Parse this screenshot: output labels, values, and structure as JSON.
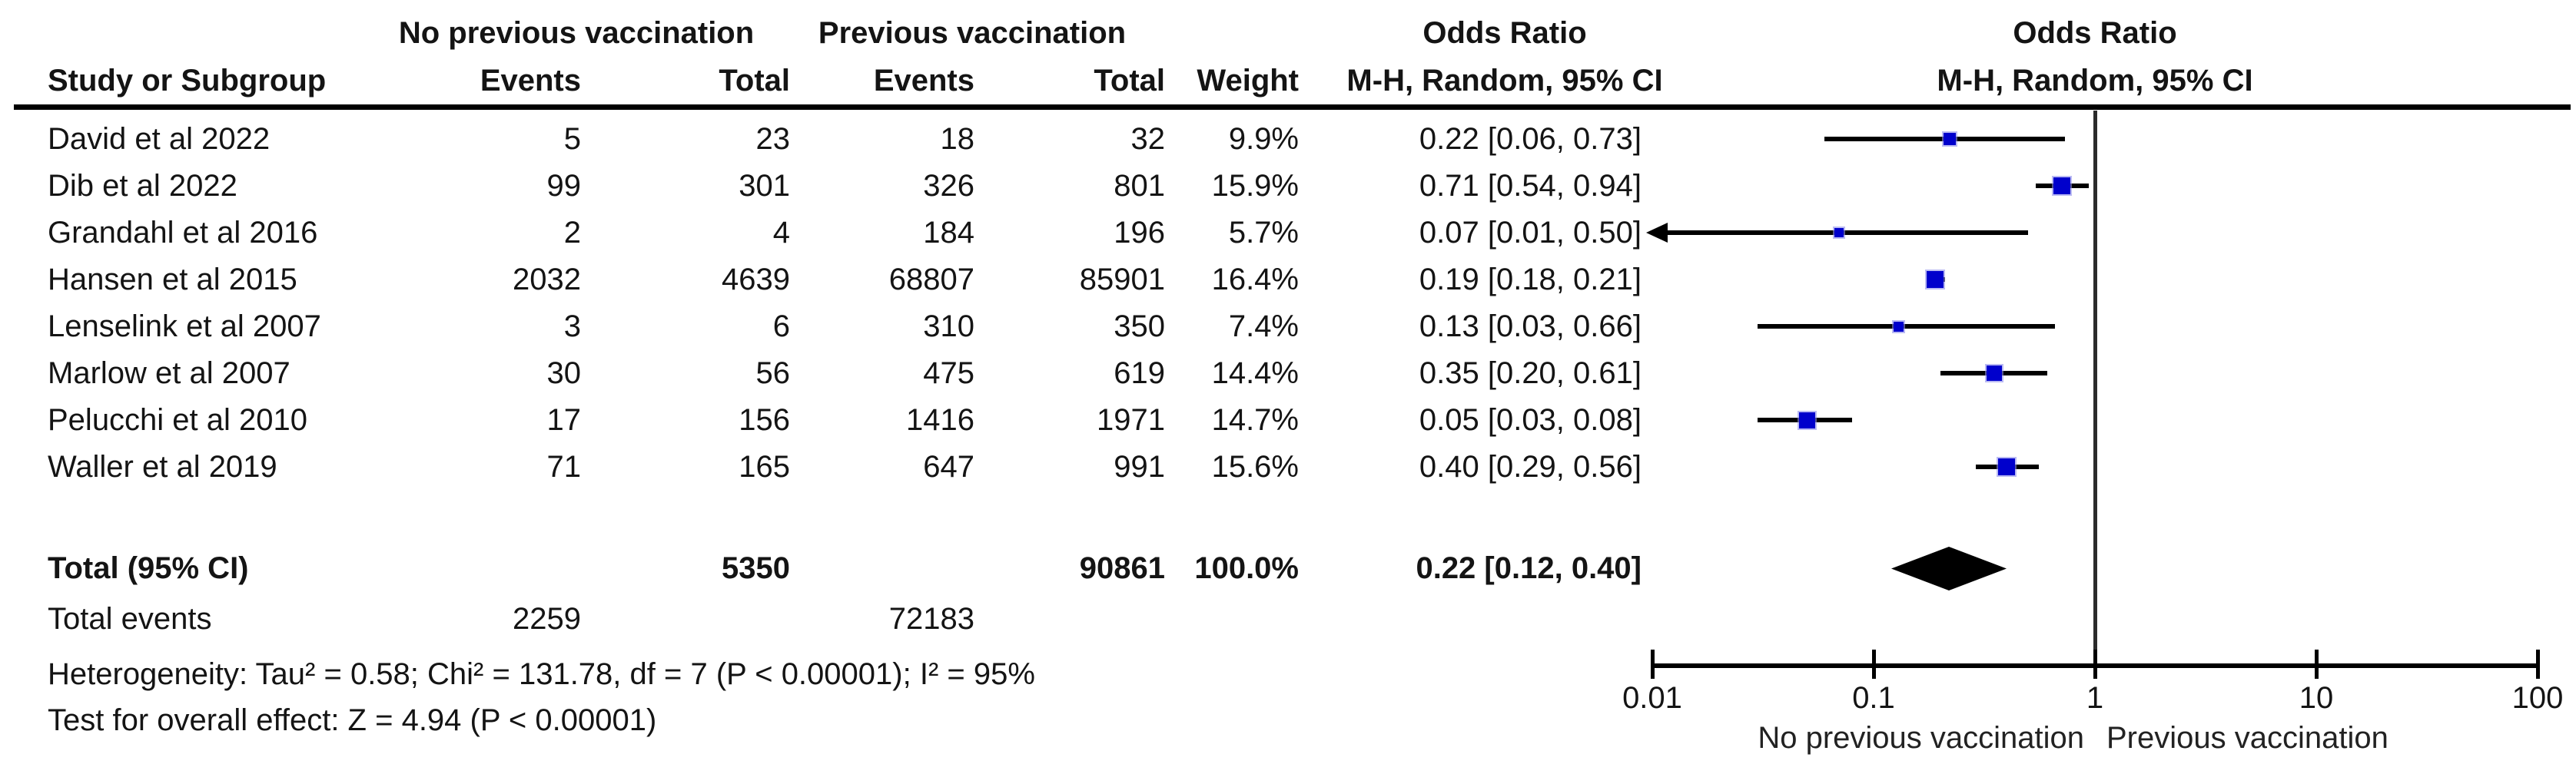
{
  "table": {
    "header_row1": {
      "group_no_prev": "No previous vaccination",
      "group_prev": "Previous vaccination",
      "or_col_title": "Odds Ratio"
    },
    "header_row2": {
      "study": "Study or Subgroup",
      "events1": "Events",
      "total1": "Total",
      "events2": "Events",
      "total2": "Total",
      "weight": "Weight",
      "or_ci": "M-H, Random, 95% CI"
    }
  },
  "plot_header": {
    "line1": "Odds Ratio",
    "line2": "M-H, Random, 95% CI"
  },
  "chart_data": {
    "type": "forest",
    "effect_measure": "Odds Ratio",
    "method": "M-H, Random, 95% CI",
    "x_scale": "log",
    "x_range": [
      0.01,
      100
    ],
    "x_ticks": [
      "0.01",
      "0.1",
      "1",
      "10",
      "100"
    ],
    "left_direction_label": "No previous vaccination",
    "right_direction_label": "Previous vaccination",
    "studies": [
      {
        "name": "David et al 2022",
        "events_no_prev": "5",
        "total_no_prev": "23",
        "events_prev": "18",
        "total_prev": "32",
        "weight": "9.9%",
        "weight_pct": 9.9,
        "or": 0.22,
        "ci_low": 0.06,
        "ci_high": 0.73,
        "or_label": "0.22 [0.06, 0.73]",
        "arrow_left": false
      },
      {
        "name": "Dib et al 2022",
        "events_no_prev": "99",
        "total_no_prev": "301",
        "events_prev": "326",
        "total_prev": "801",
        "weight": "15.9%",
        "weight_pct": 15.9,
        "or": 0.71,
        "ci_low": 0.54,
        "ci_high": 0.94,
        "or_label": "0.71 [0.54, 0.94]",
        "arrow_left": false
      },
      {
        "name": "Grandahl et al 2016",
        "events_no_prev": "2",
        "total_no_prev": "4",
        "events_prev": "184",
        "total_prev": "196",
        "weight": "5.7%",
        "weight_pct": 5.7,
        "or": 0.07,
        "ci_low": 0.01,
        "ci_high": 0.5,
        "or_label": "0.07 [0.01, 0.50]",
        "arrow_left": true
      },
      {
        "name": "Hansen et al 2015",
        "events_no_prev": "2032",
        "total_no_prev": "4639",
        "events_prev": "68807",
        "total_prev": "85901",
        "weight": "16.4%",
        "weight_pct": 16.4,
        "or": 0.19,
        "ci_low": 0.18,
        "ci_high": 0.21,
        "or_label": "0.19 [0.18, 0.21]",
        "arrow_left": false
      },
      {
        "name": "Lenselink et al 2007",
        "events_no_prev": "3",
        "total_no_prev": "6",
        "events_prev": "310",
        "total_prev": "350",
        "weight": "7.4%",
        "weight_pct": 7.4,
        "or": 0.13,
        "ci_low": 0.03,
        "ci_high": 0.66,
        "or_label": "0.13 [0.03, 0.66]",
        "arrow_left": false
      },
      {
        "name": "Marlow et al 2007",
        "events_no_prev": "30",
        "total_no_prev": "56",
        "events_prev": "475",
        "total_prev": "619",
        "weight": "14.4%",
        "weight_pct": 14.4,
        "or": 0.35,
        "ci_low": 0.2,
        "ci_high": 0.61,
        "or_label": "0.35 [0.20, 0.61]",
        "arrow_left": false
      },
      {
        "name": "Pelucchi et al 2010",
        "events_no_prev": "17",
        "total_no_prev": "156",
        "events_prev": "1416",
        "total_prev": "1971",
        "weight": "14.7%",
        "weight_pct": 14.7,
        "or": 0.05,
        "ci_low": 0.03,
        "ci_high": 0.08,
        "or_label": "0.05 [0.03, 0.08]",
        "arrow_left": false
      },
      {
        "name": "Waller et al 2019",
        "events_no_prev": "71",
        "total_no_prev": "165",
        "events_prev": "647",
        "total_prev": "991",
        "weight": "15.6%",
        "weight_pct": 15.6,
        "or": 0.4,
        "ci_low": 0.29,
        "ci_high": 0.56,
        "or_label": "0.40 [0.29, 0.56]",
        "arrow_left": false
      }
    ],
    "total": {
      "label": "Total (95% CI)",
      "total_no_prev": "5350",
      "total_prev": "90861",
      "weight": "100.0%",
      "or": 0.22,
      "ci_low": 0.12,
      "ci_high": 0.4,
      "or_label": "0.22 [0.12, 0.40]"
    },
    "total_events": {
      "label": "Total events",
      "no_prev": "2259",
      "prev": "72183"
    },
    "heterogeneity": "Heterogeneity: Tau² = 0.58; Chi² = 131.78, df = 7 (P < 0.00001); I² = 95%",
    "overall_effect": "Test for overall effect: Z = 4.94 (P < 0.00001)",
    "colors": {
      "square": "#0000CC",
      "ci_line": "#000000",
      "diamond": "#000000",
      "axis": "#000000",
      "no_effect_line": "#2b2b2b",
      "text": "#141414"
    }
  }
}
